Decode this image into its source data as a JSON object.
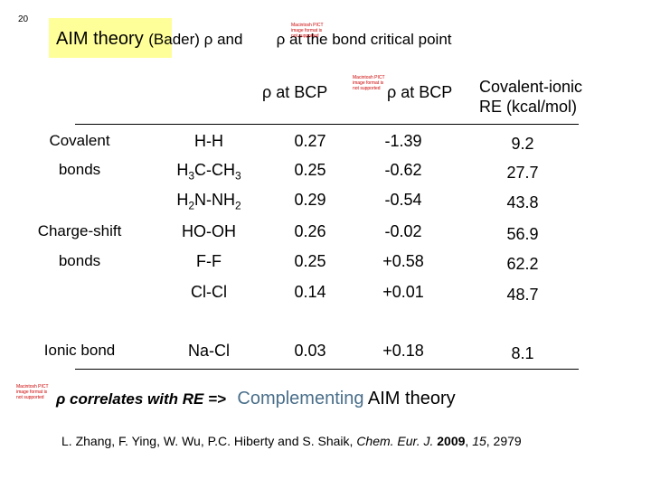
{
  "slide_number": "20",
  "title": {
    "highlight": "AIM theory",
    "middle": "(Bader) ρ and",
    "end": "ρ at the bond critical point"
  },
  "placeholders": [
    "Macintosh PICT image format is not supported",
    "Macintosh PICT image format is not supported",
    "Macintosh PICT image format is not supported"
  ],
  "table": {
    "headers": {
      "rho": "ρ at BCP",
      "laplacian": "ρ at BCP",
      "re": [
        "Covalent-ionic",
        "RE (kcal/mol)"
      ]
    },
    "groups": [
      {
        "lines": [
          "Covalent",
          "bonds"
        ]
      },
      {
        "lines": [
          "Charge-shift",
          "bonds"
        ]
      },
      {
        "lines": [
          "Ionic bond"
        ]
      }
    ],
    "rows": [
      {
        "molecule": [
          "H-H"
        ],
        "rho": "0.27",
        "laplacian": "-1.39",
        "re": "9.2"
      },
      {
        "molecule": [
          "H",
          "3",
          "C-CH",
          "3"
        ],
        "rho": "0.25",
        "laplacian": "-0.62",
        "re": "27.7"
      },
      {
        "molecule": [
          "H",
          "2",
          "N-NH",
          "2"
        ],
        "rho": "0.29",
        "laplacian": "-0.54",
        "re": "43.8"
      },
      {
        "molecule": [
          "HO-OH"
        ],
        "rho": "0.26",
        "laplacian": "-0.02",
        "re": "56.9"
      },
      {
        "molecule": [
          "F-F"
        ],
        "rho": "0.25",
        "laplacian": "+0.58",
        "re": "62.2"
      },
      {
        "molecule": [
          "Cl-Cl"
        ],
        "rho": "0.14",
        "laplacian": "+0.01",
        "re": "48.7"
      },
      {
        "molecule": [
          "Na-Cl"
        ],
        "rho": "0.03",
        "laplacian": "+0.18",
        "re": "8.1"
      }
    ]
  },
  "conclusion": {
    "left": "ρ correlates with RE =>",
    "accent": "Complementing",
    "right": "AIM theory"
  },
  "citation": {
    "authors": "L. Zhang, F. Ying, W. Wu, P.C. Hiberty and S. Shaik, ",
    "journal": "Chem. Eur. J.",
    "sep1": " ",
    "year": "2009",
    "sep2": ", ",
    "volume": "15",
    "pages": ", 2979"
  }
}
